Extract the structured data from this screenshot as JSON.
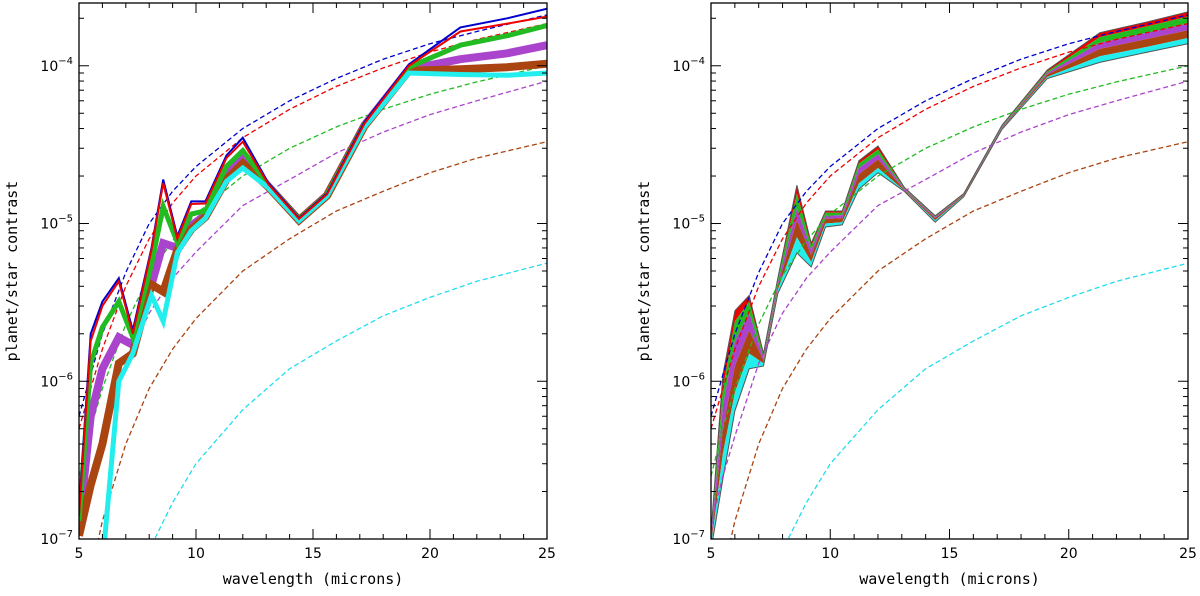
{
  "chart_data": [
    {
      "type": "line",
      "xlabel": "wavelength (microns)",
      "ylabel": "planet/star contrast",
      "xlim": [
        5,
        25
      ],
      "ylim": [
        1e-07,
        0.00025
      ],
      "yscale": "log",
      "xticks": [
        5,
        10,
        15,
        20,
        25
      ],
      "yticks": [
        {
          "base": "10",
          "exp": "−7",
          "value": 1e-07
        },
        {
          "base": "10",
          "exp": "−6",
          "value": 1e-06
        },
        {
          "base": "10",
          "exp": "−5",
          "value": 1e-05
        },
        {
          "base": "10",
          "exp": "−4",
          "value": 0.0001
        }
      ],
      "reference_curves": [
        {
          "color": "#0000cc",
          "x": [
            5,
            5.5,
            6,
            7,
            8,
            9,
            10,
            12,
            14,
            16,
            18,
            20,
            22,
            25
          ],
          "y": [
            6e-07,
            1.1e-06,
            2e-06,
            4.9e-06,
            1e-05,
            1.6e-05,
            2.3e-05,
            4e-05,
            6e-05,
            8.3e-05,
            0.00011,
            0.000138,
            0.000165,
            0.00021
          ]
        },
        {
          "color": "#ee0000",
          "x": [
            5,
            5.5,
            6,
            7,
            8,
            9,
            10,
            12,
            14,
            16,
            18,
            20,
            22,
            25
          ],
          "y": [
            5e-07,
            9e-07,
            1.6e-06,
            4e-06,
            8e-06,
            1.35e-05,
            2e-05,
            3.5e-05,
            5.3e-05,
            7.4e-05,
            9.7e-05,
            0.000122,
            0.000147,
            0.000185
          ]
        },
        {
          "color": "#22bb22",
          "x": [
            5,
            5.5,
            6,
            7,
            8,
            9,
            10,
            12,
            14,
            16,
            18,
            20,
            22,
            25
          ],
          "y": [
            2.5e-07,
            5e-07,
            9e-07,
            2.3e-06,
            4.7e-06,
            7.8e-06,
            1.15e-05,
            2e-05,
            3e-05,
            4.1e-05,
            5.3e-05,
            6.6e-05,
            7.9e-05,
            0.0001
          ]
        },
        {
          "color": "#aa44cc",
          "x": [
            5,
            5.5,
            6,
            7,
            8,
            9,
            10,
            12,
            14,
            16,
            18,
            20,
            22,
            25
          ],
          "y": [
            1.2e-07,
            2.5e-07,
            4.5e-07,
            1.3e-06,
            2.7e-06,
            4.5e-06,
            6.6e-06,
            1.3e-05,
            1.9e-05,
            2.8e-05,
            3.8e-05,
            4.9e-05,
            6e-05,
            8e-05
          ]
        },
        {
          "color": "#aa4411",
          "x": [
            5.5,
            6,
            7,
            8,
            9,
            10,
            12,
            14,
            16,
            18,
            20,
            22,
            25
          ],
          "y": [
            6e-08,
            1.3e-07,
            4e-07,
            9e-07,
            1.6e-06,
            2.5e-06,
            5e-06,
            8e-06,
            1.2e-05,
            1.6e-05,
            2.1e-05,
            2.6e-05,
            3.3e-05
          ]
        },
        {
          "color": "#22ddee",
          "x": [
            7.5,
            8,
            9,
            10,
            12,
            14,
            16,
            18,
            20,
            22,
            25
          ],
          "y": [
            6e-08,
            8.5e-08,
            1.7e-07,
            3e-07,
            6.6e-07,
            1.2e-06,
            1.8e-06,
            2.6e-06,
            3.4e-06,
            4.3e-06,
            5.6e-06
          ]
        }
      ],
      "series": [
        {
          "color": "#0000cc",
          "width": 2,
          "x": [
            5,
            5.5,
            6,
            6.7,
            7.3,
            8.1,
            8.6,
            9.2,
            9.8,
            10.4,
            11.3,
            12,
            13.1,
            14.4,
            15.6,
            17.2,
            19.1,
            21.3,
            23.3,
            25
          ],
          "y": [
            1.5e-07,
            2e-06,
            3.2e-06,
            4.5e-06,
            2.1e-06,
            7e-06,
            1.9e-05,
            8.3e-06,
            1.38e-05,
            1.38e-05,
            2.7e-05,
            3.5e-05,
            1.8e-05,
            1.08e-05,
            1.55e-05,
            4.4e-05,
            0.000102,
            0.000175,
            0.0002,
            0.00023
          ]
        },
        {
          "color": "#ee0000",
          "width": 2,
          "x": [
            5,
            5.5,
            6,
            6.7,
            7.3,
            8.1,
            8.6,
            9.2,
            9.8,
            10.4,
            11.3,
            12,
            13.1,
            14.4,
            15.6,
            17.2,
            19.1,
            21.3,
            23.3,
            25
          ],
          "y": [
            1.4e-07,
            1.8e-06,
            3e-06,
            4.3e-06,
            2e-06,
            6.8e-06,
            1.8e-05,
            8e-06,
            1.33e-05,
            1.34e-05,
            2.6e-05,
            3.3e-05,
            1.77e-05,
            1.07e-05,
            1.53e-05,
            4.3e-05,
            0.0001,
            0.000165,
            0.000185,
            0.000205
          ]
        },
        {
          "color": "#22bb22",
          "width": 5,
          "x": [
            5,
            5.5,
            6,
            6.7,
            7.3,
            8.1,
            8.6,
            9.2,
            9.8,
            10.4,
            11.3,
            12,
            13.1,
            14.4,
            15.6,
            17.2,
            19.1,
            21.3,
            23.3,
            25
          ],
          "y": [
            1.3e-07,
            1.3e-06,
            2.2e-06,
            3.2e-06,
            1.9e-06,
            5.5e-06,
            1.28e-05,
            7.6e-06,
            1.15e-05,
            1.2e-05,
            2.3e-05,
            2.9e-05,
            1.75e-05,
            1.06e-05,
            1.52e-05,
            4.25e-05,
            9.8e-05,
            0.000135,
            0.000155,
            0.00018
          ]
        },
        {
          "color": "#aa44cc",
          "width": 8,
          "x": [
            5,
            5.5,
            6,
            6.7,
            7.3,
            8.1,
            8.6,
            9.2,
            9.8,
            10.4,
            11.3,
            12,
            13.1,
            14.4,
            15.6,
            17.2,
            19.1,
            21.3,
            23.3,
            25
          ],
          "y": [
            1.2e-07,
            6e-07,
            1.2e-06,
            1.9e-06,
            1.7e-06,
            4.1e-06,
            7.5e-06,
            7e-06,
            9.7e-06,
            1.13e-05,
            2.1e-05,
            2.6e-05,
            1.72e-05,
            1.05e-05,
            1.51e-05,
            4.2e-05,
            9.5e-05,
            0.00011,
            0.00012,
            0.000135
          ]
        },
        {
          "color": "#aa4411",
          "width": 8,
          "x": [
            5,
            5.5,
            6,
            6.7,
            7.3,
            8.1,
            8.6,
            9.2,
            9.8,
            10.4,
            11.3,
            12,
            13.1,
            14.4,
            15.6,
            17.2,
            19.1,
            21.3,
            23.3,
            25
          ],
          "y": [
            1.05e-07,
            2.2e-07,
            4e-07,
            1.3e-06,
            1.5e-06,
            4.1e-06,
            3.7e-06,
            6.8e-06,
            9.2e-06,
            1.1e-05,
            1.9e-05,
            2.4e-05,
            1.7e-05,
            1.05e-05,
            1.5e-05,
            4.15e-05,
            9.3e-05,
            9.5e-05,
            9.8e-05,
            0.000103
          ]
        },
        {
          "color": "#22eeee",
          "width": 5,
          "x": [
            6.1,
            6.7,
            7.3,
            8.1,
            8.6,
            9.2,
            9.8,
            10.4,
            11.3,
            12,
            13.1,
            14.4,
            15.6,
            17.2,
            19.1,
            21.3,
            23.3,
            25
          ],
          "y": [
            1e-07,
            1e-06,
            1.5e-06,
            3.5e-06,
            2.4e-06,
            6.5e-06,
            9e-06,
            1.08e-05,
            1.85e-05,
            2.25e-05,
            1.68e-05,
            1.04e-05,
            1.49e-05,
            4.1e-05,
            9e-05,
            8.8e-05,
            8.7e-05,
            9e-05
          ]
        }
      ]
    },
    {
      "type": "area",
      "xlabel": "wavelength (microns)",
      "ylabel": "planet/star contrast",
      "xlim": [
        5,
        25
      ],
      "ylim": [
        1e-07,
        0.00025
      ],
      "yscale": "log",
      "xticks": [
        5,
        10,
        15,
        20,
        25
      ],
      "yticks": [
        {
          "base": "10",
          "exp": "−7",
          "value": 1e-07
        },
        {
          "base": "10",
          "exp": "−6",
          "value": 1e-06
        },
        {
          "base": "10",
          "exp": "−5",
          "value": 1e-05
        },
        {
          "base": "10",
          "exp": "−4",
          "value": 0.0001
        }
      ],
      "reference_curves": [
        {
          "color": "#0000cc",
          "x": [
            5,
            5.5,
            6,
            7,
            8,
            9,
            10,
            12,
            14,
            16,
            18,
            20,
            22,
            25
          ],
          "y": [
            6e-07,
            1.1e-06,
            2e-06,
            4.9e-06,
            1e-05,
            1.6e-05,
            2.3e-05,
            4e-05,
            6e-05,
            8.3e-05,
            0.00011,
            0.000138,
            0.000165,
            0.00021
          ]
        },
        {
          "color": "#ee0000",
          "x": [
            5,
            5.5,
            6,
            7,
            8,
            9,
            10,
            12,
            14,
            16,
            18,
            20,
            22,
            25
          ],
          "y": [
            5e-07,
            9e-07,
            1.6e-06,
            4e-06,
            8e-06,
            1.35e-05,
            2e-05,
            3.5e-05,
            5.3e-05,
            7.4e-05,
            9.7e-05,
            0.000122,
            0.000147,
            0.000185
          ]
        },
        {
          "color": "#22bb22",
          "x": [
            5,
            5.5,
            6,
            7,
            8,
            9,
            10,
            12,
            14,
            16,
            18,
            20,
            22,
            25
          ],
          "y": [
            2.5e-07,
            5e-07,
            9e-07,
            2.3e-06,
            4.7e-06,
            7.8e-06,
            1.15e-05,
            2e-05,
            3e-05,
            4.1e-05,
            5.3e-05,
            6.6e-05,
            7.9e-05,
            0.0001
          ]
        },
        {
          "color": "#aa44cc",
          "x": [
            5,
            5.5,
            6,
            7,
            8,
            9,
            10,
            12,
            14,
            16,
            18,
            20,
            22,
            25
          ],
          "y": [
            1.2e-07,
            2.5e-07,
            4.5e-07,
            1.3e-06,
            2.7e-06,
            4.5e-06,
            6.6e-06,
            1.3e-05,
            1.9e-05,
            2.8e-05,
            3.8e-05,
            4.9e-05,
            6e-05,
            8e-05
          ]
        },
        {
          "color": "#aa4411",
          "x": [
            5.5,
            6,
            7,
            8,
            9,
            10,
            12,
            14,
            16,
            18,
            20,
            22,
            25
          ],
          "y": [
            6e-08,
            1.3e-07,
            4e-07,
            9e-07,
            1.6e-06,
            2.5e-06,
            5e-06,
            8e-06,
            1.2e-05,
            1.6e-05,
            2.1e-05,
            2.6e-05,
            3.3e-05
          ]
        },
        {
          "color": "#22ddee",
          "x": [
            7.5,
            8,
            9,
            10,
            12,
            14,
            16,
            18,
            20,
            22,
            25
          ],
          "y": [
            6e-08,
            8.5e-08,
            1.7e-07,
            3e-07,
            6.6e-07,
            1.2e-06,
            1.8e-06,
            2.6e-06,
            3.4e-06,
            4.3e-06,
            5.6e-06
          ]
        }
      ],
      "x": [
        5,
        5.5,
        6,
        6.6,
        7.2,
        7.8,
        8.6,
        9.2,
        9.8,
        10.5,
        11.2,
        12,
        13.1,
        14.4,
        15.6,
        17.2,
        19.1,
        21.3,
        23.3,
        25
      ],
      "series": [
        {
          "color": "#ee0000",
          "y": [
            1.1e-07,
            1.1e-06,
            2.8e-06,
            3.5e-06,
            1.5e-06,
            4.5e-06,
            1.75e-05,
            7.5e-06,
            1.2e-05,
            1.2e-05,
            2.5e-05,
            3.1e-05,
            1.7e-05,
            1.12e-05,
            1.55e-05,
            4.2e-05,
            9.4e-05,
            0.000162,
            0.00019,
            0.00022
          ]
        },
        {
          "color": "#22bb22",
          "y": [
            1.05e-07,
            9e-07,
            2.4e-06,
            3.2e-06,
            1.45e-06,
            4.4e-06,
            1.55e-05,
            7.2e-06,
            1.17e-05,
            1.17e-05,
            2.4e-05,
            2.95e-05,
            1.68e-05,
            1.11e-05,
            1.54e-05,
            4.15e-05,
            9.2e-05,
            0.000152,
            0.000178,
            0.000205
          ]
        },
        {
          "color": "#aa44cc",
          "y": [
            1e-07,
            7e-07,
            1.8e-06,
            2.7e-06,
            1.4e-06,
            4.2e-06,
            1.25e-05,
            6.8e-06,
            1.12e-05,
            1.13e-05,
            2.25e-05,
            2.75e-05,
            1.66e-05,
            1.1e-05,
            1.53e-05,
            4.1e-05,
            9e-05,
            0.00014,
            0.000162,
            0.000185
          ]
        },
        {
          "color": "#aa4411",
          "y": [
            9.5e-08,
            5e-07,
            1.25e-06,
            2.1e-06,
            1.35e-06,
            4e-06,
            1.05e-05,
            6.3e-06,
            1.07e-05,
            1.08e-05,
            2.05e-05,
            2.55e-05,
            1.64e-05,
            1.08e-05,
            1.52e-05,
            4.05e-05,
            8.8e-05,
            0.000128,
            0.000148,
            0.000168
          ]
        },
        {
          "color": "#22eeee",
          "y": [
            9e-08,
            3.5e-07,
            8.5e-07,
            1.5e-06,
            1.3e-06,
            3.8e-06,
            8.2e-06,
            5.7e-06,
            1e-05,
            1.02e-05,
            1.8e-05,
            2.25e-05,
            1.62e-05,
            1.05e-05,
            1.5e-05,
            4e-05,
            8.5e-05,
            0.000115,
            0.000132,
            0.00015
          ]
        }
      ],
      "baseline": [
        8.5e-08,
        2.4e-07,
        6.5e-07,
        1.2e-06,
        1.25e-06,
        3.6e-06,
        6.5e-06,
        5.3e-06,
        9.5e-06,
        9.8e-06,
        1.65e-05,
        2.1e-05,
        1.6e-05,
        1.02e-05,
        1.48e-05,
        3.95e-05,
        8.3e-05,
        0.000105,
        0.000122,
        0.000138
      ]
    }
  ]
}
